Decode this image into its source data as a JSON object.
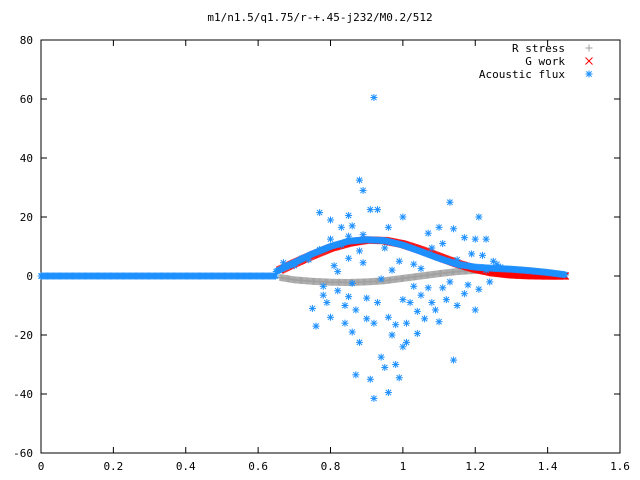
{
  "chart_data": {
    "type": "scatter",
    "title": "m1/n1.5/q1.75/r-+.45-j232/M0.2/512",
    "xlabel": "",
    "ylabel": "",
    "xlim": [
      0,
      1.6
    ],
    "ylim": [
      -60,
      80
    ],
    "x_ticks": [
      0,
      0.2,
      0.4,
      0.6,
      0.8,
      1,
      1.2,
      1.4,
      1.6
    ],
    "x_tick_labels": [
      "0",
      "0.2",
      "0.4",
      "0.6",
      "0.8",
      "1",
      "1.2",
      "1.4",
      "1.6"
    ],
    "y_ticks": [
      -60,
      -40,
      -20,
      0,
      20,
      40,
      60,
      80
    ],
    "y_tick_labels": [
      "-60",
      "-40",
      "-20",
      "0",
      "20",
      "40",
      "60",
      "80"
    ],
    "grid": false,
    "legend_position": "top-right",
    "series": [
      {
        "name": "R stress",
        "marker": "plus",
        "color": "#a0a0a0",
        "points": [
          [
            0.66,
            -0.5
          ],
          [
            0.7,
            -1.3
          ],
          [
            0.75,
            -1.8
          ],
          [
            0.8,
            -2.1
          ],
          [
            0.85,
            -2.2
          ],
          [
            0.9,
            -2.0
          ],
          [
            0.95,
            -1.6
          ],
          [
            1.0,
            -0.8
          ],
          [
            1.05,
            0.0
          ],
          [
            1.1,
            0.8
          ],
          [
            1.15,
            1.5
          ],
          [
            1.2,
            1.9
          ],
          [
            1.25,
            2.2
          ],
          [
            1.3,
            2.2
          ],
          [
            1.35,
            1.8
          ],
          [
            1.4,
            1.1
          ],
          [
            1.45,
            0.3
          ]
        ]
      },
      {
        "name": "G work",
        "marker": "cross",
        "color": "#ff0000",
        "points": [
          [
            0.66,
            2.0
          ],
          [
            0.7,
            4.3
          ],
          [
            0.75,
            7.0
          ],
          [
            0.8,
            9.5
          ],
          [
            0.85,
            11.2
          ],
          [
            0.9,
            12.2
          ],
          [
            0.95,
            12.0
          ],
          [
            1.0,
            10.8
          ],
          [
            1.05,
            8.8
          ],
          [
            1.1,
            6.5
          ],
          [
            1.15,
            4.2
          ],
          [
            1.2,
            2.4
          ],
          [
            1.25,
            1.1
          ],
          [
            1.3,
            0.4
          ],
          [
            1.35,
            0.1
          ],
          [
            1.4,
            0.0
          ],
          [
            1.45,
            0.0
          ]
        ]
      },
      {
        "name": "Acoustic flux",
        "marker": "star",
        "color": "#1e90ff",
        "baseline": {
          "x_range": [
            0,
            0.65
          ],
          "y": 0
        },
        "envelope": [
          [
            0.65,
            1.5
          ],
          [
            0.7,
            4.5
          ],
          [
            0.75,
            7.5
          ],
          [
            0.8,
            10.0
          ],
          [
            0.85,
            11.8
          ],
          [
            0.9,
            12.3
          ],
          [
            0.95,
            12.0
          ],
          [
            1.0,
            10.5
          ],
          [
            1.05,
            8.3
          ],
          [
            1.1,
            6.0
          ],
          [
            1.15,
            4.0
          ],
          [
            1.2,
            3.0
          ],
          [
            1.25,
            2.6
          ],
          [
            1.3,
            2.3
          ],
          [
            1.35,
            1.8
          ],
          [
            1.4,
            1.2
          ],
          [
            1.45,
            0.4
          ]
        ],
        "points": [
          [
            0.67,
            4.5
          ],
          [
            0.69,
            4.0
          ],
          [
            0.7,
            3.5
          ],
          [
            0.72,
            6.0
          ],
          [
            0.74,
            5.5
          ],
          [
            0.75,
            -11.0
          ],
          [
            0.76,
            -17.0
          ],
          [
            0.77,
            21.5
          ],
          [
            0.77,
            9.0
          ],
          [
            0.78,
            -6.5
          ],
          [
            0.78,
            -3.5
          ],
          [
            0.79,
            -9.0
          ],
          [
            0.8,
            19.0
          ],
          [
            0.8,
            12.5
          ],
          [
            0.8,
            -14.0
          ],
          [
            0.81,
            3.5
          ],
          [
            0.82,
            -5.0
          ],
          [
            0.82,
            1.5
          ],
          [
            0.83,
            16.5
          ],
          [
            0.83,
            10.5
          ],
          [
            0.84,
            -10.0
          ],
          [
            0.84,
            -16.0
          ],
          [
            0.85,
            20.5
          ],
          [
            0.85,
            13.5
          ],
          [
            0.85,
            6.0
          ],
          [
            0.85,
            -7.0
          ],
          [
            0.86,
            -19.0
          ],
          [
            0.86,
            17.0
          ],
          [
            0.86,
            -2.5
          ],
          [
            0.87,
            -11.5
          ],
          [
            0.87,
            -33.5
          ],
          [
            0.88,
            32.5
          ],
          [
            0.88,
            8.5
          ],
          [
            0.88,
            -22.5
          ],
          [
            0.89,
            29.0
          ],
          [
            0.89,
            14.0
          ],
          [
            0.89,
            4.5
          ],
          [
            0.9,
            -7.5
          ],
          [
            0.9,
            -14.5
          ],
          [
            0.91,
            22.5
          ],
          [
            0.91,
            -35.0
          ],
          [
            0.92,
            60.5
          ],
          [
            0.92,
            -41.5
          ],
          [
            0.92,
            -16.0
          ],
          [
            0.93,
            22.5
          ],
          [
            0.93,
            -9.0
          ],
          [
            0.94,
            -27.5
          ],
          [
            0.94,
            -1.0
          ],
          [
            0.95,
            9.5
          ],
          [
            0.95,
            -31.0
          ],
          [
            0.96,
            16.5
          ],
          [
            0.96,
            -14.0
          ],
          [
            0.96,
            -39.5
          ],
          [
            0.97,
            2.0
          ],
          [
            0.97,
            -20.0
          ],
          [
            0.98,
            -16.5
          ],
          [
            0.98,
            -30.0
          ],
          [
            0.99,
            5.0
          ],
          [
            0.99,
            -34.5
          ],
          [
            1.0,
            20.0
          ],
          [
            1.0,
            -8.0
          ],
          [
            1.0,
            -24.0
          ],
          [
            1.01,
            -16.0
          ],
          [
            1.01,
            -22.5
          ],
          [
            1.02,
            -9.0
          ],
          [
            1.03,
            -3.5
          ],
          [
            1.03,
            4.0
          ],
          [
            1.04,
            -12.0
          ],
          [
            1.04,
            -19.5
          ],
          [
            1.05,
            2.5
          ],
          [
            1.05,
            -6.5
          ],
          [
            1.06,
            -14.5
          ],
          [
            1.07,
            14.5
          ],
          [
            1.07,
            -4.0
          ],
          [
            1.08,
            -9.0
          ],
          [
            1.08,
            9.5
          ],
          [
            1.09,
            -11.5
          ],
          [
            1.1,
            16.5
          ],
          [
            1.1,
            -15.5
          ],
          [
            1.11,
            -4.0
          ],
          [
            1.11,
            11.0
          ],
          [
            1.12,
            -8.0
          ],
          [
            1.13,
            25.0
          ],
          [
            1.13,
            -2.0
          ],
          [
            1.14,
            -28.5
          ],
          [
            1.14,
            16.0
          ],
          [
            1.15,
            5.5
          ],
          [
            1.15,
            -10.0
          ],
          [
            1.16,
            3.5
          ],
          [
            1.17,
            13.0
          ],
          [
            1.17,
            -6.0
          ],
          [
            1.18,
            -3.0
          ],
          [
            1.19,
            7.5
          ],
          [
            1.2,
            12.5
          ],
          [
            1.2,
            -11.5
          ],
          [
            1.21,
            20.0
          ],
          [
            1.21,
            -4.5
          ],
          [
            1.22,
            7.0
          ],
          [
            1.23,
            12.5
          ],
          [
            1.23,
            2.0
          ],
          [
            1.24,
            -2.0
          ],
          [
            1.25,
            5.0
          ],
          [
            1.26,
            4.0
          ],
          [
            1.27,
            3.0
          ]
        ]
      }
    ]
  }
}
